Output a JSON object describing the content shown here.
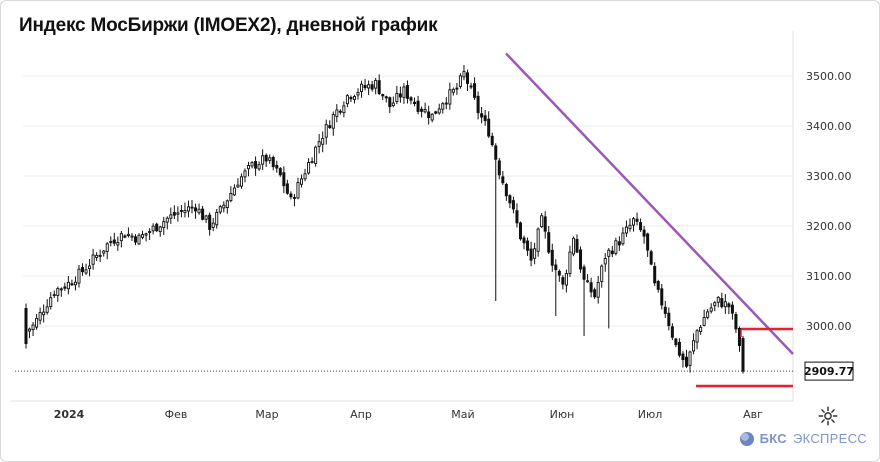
{
  "title": "Индекс МосБиржи (IMOEX2), дневной график",
  "brand": {
    "bold": "БКС",
    "thin": "ЭКСПРЕСС",
    "logo_icon": "bks-logo-icon"
  },
  "settings_icon": "gear-icon",
  "colors": {
    "candle": "#111111",
    "trendline": "#9b59b6",
    "level": "#e8212e",
    "grid": "#ececec",
    "axis_text": "#333333"
  },
  "price_label": "2909.77",
  "chart_data": {
    "type": "candlestick",
    "title": "Индекс МосБиржи (IMOEX2), дневной график",
    "y_ticks": [
      3500,
      3400,
      3300,
      3200,
      3100,
      3000
    ],
    "y_tick_labels": [
      "3500.00",
      "3400.00",
      "3300.00",
      "3200.00",
      "3100.00",
      "3000.00"
    ],
    "ylim": [
      2850,
      3560
    ],
    "x_labels": [
      "2024",
      "Фев",
      "Мар",
      "Апр",
      "Май",
      "Июн",
      "Июл",
      "Авг"
    ],
    "last_price": 2909.77,
    "trendline": {
      "from": [
        "2024-05-17",
        3545
      ],
      "to": [
        "2024-08-05",
        2944
      ]
    },
    "resistance_level": 2994,
    "support_level": 2880,
    "grid": true,
    "candles": []
  }
}
